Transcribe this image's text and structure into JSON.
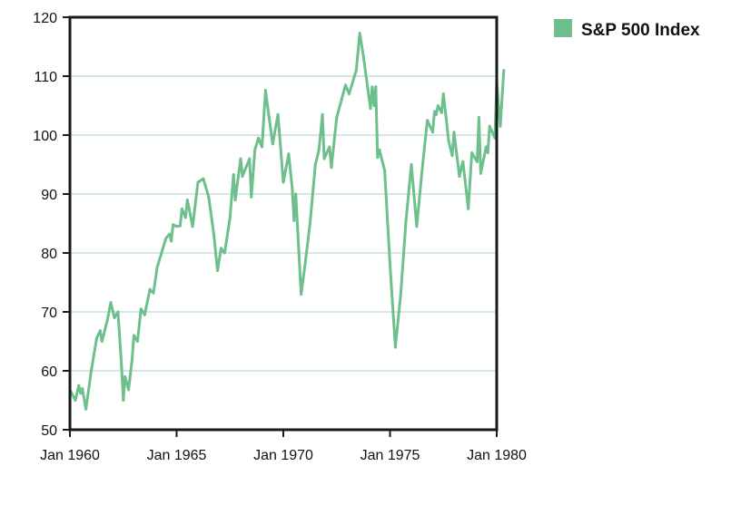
{
  "chart_data": {
    "type": "line",
    "title": "",
    "xlabel": "",
    "ylabel": "",
    "xlim": [
      "Jan 1960",
      "Jan 1980"
    ],
    "ylim": [
      50,
      120
    ],
    "x_ticks": [
      "Jan 1960",
      "Jan 1965",
      "Jan 1970",
      "Jan 1975",
      "Jan 1980"
    ],
    "y_ticks": [
      50,
      60,
      70,
      80,
      90,
      100,
      110,
      120
    ],
    "grid": "horizontal",
    "legend_position": "top-right",
    "series": [
      {
        "name": "S&P 500 Index",
        "color": "#6dbf8b",
        "points": [
          [
            "1960-01",
            56.8
          ],
          [
            "1960-04",
            55.0
          ],
          [
            "1960-06",
            57.5
          ],
          [
            "1960-07",
            56.2
          ],
          [
            "1960-08",
            57.0
          ],
          [
            "1960-10",
            53.5
          ],
          [
            "1961-01",
            60.0
          ],
          [
            "1961-04",
            65.5
          ],
          [
            "1961-06",
            66.8
          ],
          [
            "1961-07",
            65.0
          ],
          [
            "1961-10",
            68.5
          ],
          [
            "1961-12",
            71.6
          ],
          [
            "1962-02",
            69.0
          ],
          [
            "1962-04",
            70.0
          ],
          [
            "1962-06",
            61.0
          ],
          [
            "1962-07",
            55.0
          ],
          [
            "1962-08",
            59.0
          ],
          [
            "1962-10",
            56.8
          ],
          [
            "1962-12",
            62.0
          ],
          [
            "1963-01",
            66.0
          ],
          [
            "1963-03",
            65.0
          ],
          [
            "1963-05",
            70.5
          ],
          [
            "1963-07",
            69.5
          ],
          [
            "1963-10",
            73.8
          ],
          [
            "1963-12",
            73.2
          ],
          [
            "1964-02",
            77.5
          ],
          [
            "1964-05",
            80.5
          ],
          [
            "1964-07",
            82.5
          ],
          [
            "1964-09",
            83.2
          ],
          [
            "1964-10",
            82.0
          ],
          [
            "1964-11",
            84.8
          ],
          [
            "1965-01",
            84.5
          ],
          [
            "1965-03",
            84.6
          ],
          [
            "1965-04",
            87.5
          ],
          [
            "1965-06",
            86.0
          ],
          [
            "1965-07",
            89.0
          ],
          [
            "1965-10",
            84.5
          ],
          [
            "1966-01",
            92.0
          ],
          [
            "1966-04",
            92.6
          ],
          [
            "1966-07",
            89.5
          ],
          [
            "1966-10",
            83.0
          ],
          [
            "1966-12",
            77.0
          ],
          [
            "1967-02",
            80.8
          ],
          [
            "1967-04",
            80.0
          ],
          [
            "1967-07",
            86.0
          ],
          [
            "1967-09",
            93.3
          ],
          [
            "1967-10",
            89.0
          ],
          [
            "1968-01",
            96.0
          ],
          [
            "1968-02",
            93.0
          ],
          [
            "1968-06",
            96.0
          ],
          [
            "1968-07",
            89.5
          ],
          [
            "1968-09",
            97.5
          ],
          [
            "1968-11",
            99.5
          ],
          [
            "1969-01",
            98.0
          ],
          [
            "1969-03",
            107.6
          ],
          [
            "1969-05",
            103.0
          ],
          [
            "1969-07",
            98.5
          ],
          [
            "1969-10",
            103.5
          ],
          [
            "1970-01",
            92.0
          ],
          [
            "1970-04",
            96.8
          ],
          [
            "1970-06",
            91.0
          ],
          [
            "1970-07",
            85.5
          ],
          [
            "1970-08",
            90.0
          ],
          [
            "1970-11",
            73.0
          ],
          [
            "1971-01",
            77.5
          ],
          [
            "1971-04",
            85.0
          ],
          [
            "1971-07",
            95.0
          ],
          [
            "1971-09",
            97.5
          ],
          [
            "1971-11",
            103.5
          ],
          [
            "1971-12",
            96.0
          ],
          [
            "1972-03",
            98.0
          ],
          [
            "1972-04",
            94.5
          ],
          [
            "1972-07",
            103.0
          ],
          [
            "1972-12",
            108.5
          ],
          [
            "1973-02",
            107.0
          ],
          [
            "1973-06",
            111.0
          ],
          [
            "1973-08",
            117.3
          ],
          [
            "1973-10",
            113.5
          ],
          [
            "1974-02",
            104.5
          ],
          [
            "1974-03",
            108.2
          ],
          [
            "1974-04",
            105.0
          ],
          [
            "1974-05",
            108.2
          ],
          [
            "1974-06",
            96.2
          ],
          [
            "1974-07",
            97.5
          ],
          [
            "1974-10",
            94.0
          ],
          [
            "1975-01",
            78.0
          ],
          [
            "1975-04",
            64.0
          ],
          [
            "1975-07",
            73.0
          ],
          [
            "1975-10",
            85.5
          ],
          [
            "1976-01",
            95.0
          ],
          [
            "1976-04",
            84.5
          ],
          [
            "1976-07",
            94.0
          ],
          [
            "1976-10",
            102.5
          ],
          [
            "1977-01",
            100.5
          ],
          [
            "1977-02",
            104.0
          ],
          [
            "1977-03",
            103.5
          ],
          [
            "1977-04",
            105.0
          ],
          [
            "1977-06",
            103.8
          ],
          [
            "1977-07",
            107.0
          ],
          [
            "1977-10",
            99.0
          ],
          [
            "1977-12",
            96.5
          ],
          [
            "1978-01",
            100.5
          ],
          [
            "1978-04",
            93.0
          ],
          [
            "1978-06",
            95.5
          ],
          [
            "1978-09",
            87.5
          ],
          [
            "1978-11",
            97.0
          ],
          [
            "1979-02",
            95.5
          ],
          [
            "1979-03",
            103.0
          ],
          [
            "1979-04",
            93.5
          ],
          [
            "1979-07",
            98.0
          ],
          [
            "1979-08",
            97.0
          ],
          [
            "1979-09",
            101.5
          ],
          [
            "1979-12",
            99.5
          ],
          [
            "1980-01",
            109.0
          ],
          [
            "1980-03",
            101.5
          ],
          [
            "1980-05",
            111.0
          ]
        ]
      }
    ]
  }
}
